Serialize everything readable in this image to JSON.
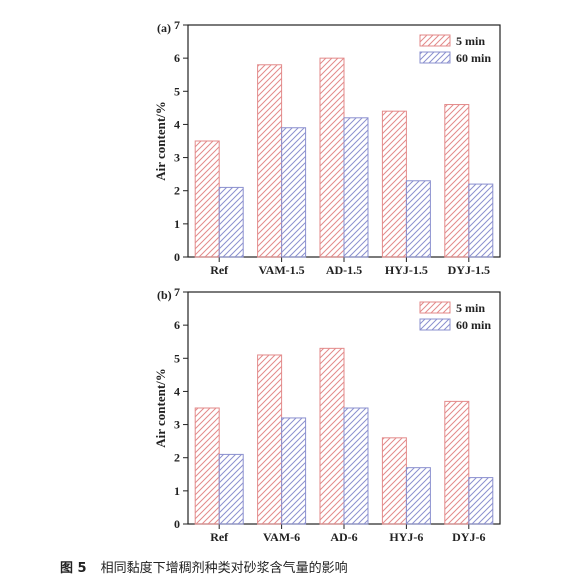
{
  "colors": {
    "series_5min": "#e38a8a",
    "series_60min": "#8b90cf",
    "axis": "#222222"
  },
  "caption": {
    "figure_number": "图 5",
    "text": "相同黏度下增稠剂种类对砂浆含气量的影响"
  },
  "chart_data": [
    {
      "type": "bar",
      "panel_label": "(a)",
      "categories": [
        "Ref",
        "VAM-1.5",
        "AD-1.5",
        "HYJ-1.5",
        "DYJ-1.5"
      ],
      "series": [
        {
          "name": "5 min",
          "values": [
            3.5,
            5.8,
            6.0,
            4.4,
            4.6
          ]
        },
        {
          "name": "60 min",
          "values": [
            2.1,
            3.9,
            4.2,
            2.3,
            2.2
          ]
        }
      ],
      "ylabel": "Air content/%",
      "ylim": [
        0,
        7
      ],
      "yticks": [
        "0",
        "1",
        "2",
        "3",
        "4",
        "5",
        "6",
        "7"
      ],
      "grid": false,
      "legend_position": "top-right"
    },
    {
      "type": "bar",
      "panel_label": "(b)",
      "categories": [
        "Ref",
        "VAM-6",
        "AD-6",
        "HYJ-6",
        "DYJ-6"
      ],
      "series": [
        {
          "name": "5 min",
          "values": [
            3.5,
            5.1,
            5.3,
            2.6,
            3.7
          ]
        },
        {
          "name": "60 min",
          "values": [
            2.1,
            3.2,
            3.5,
            1.7,
            1.4
          ]
        }
      ],
      "ylabel": "Air content/%",
      "ylim": [
        0,
        7
      ],
      "yticks": [
        "0",
        "1",
        "2",
        "3",
        "4",
        "5",
        "6",
        "7"
      ],
      "grid": false,
      "legend_position": "top-right"
    }
  ]
}
